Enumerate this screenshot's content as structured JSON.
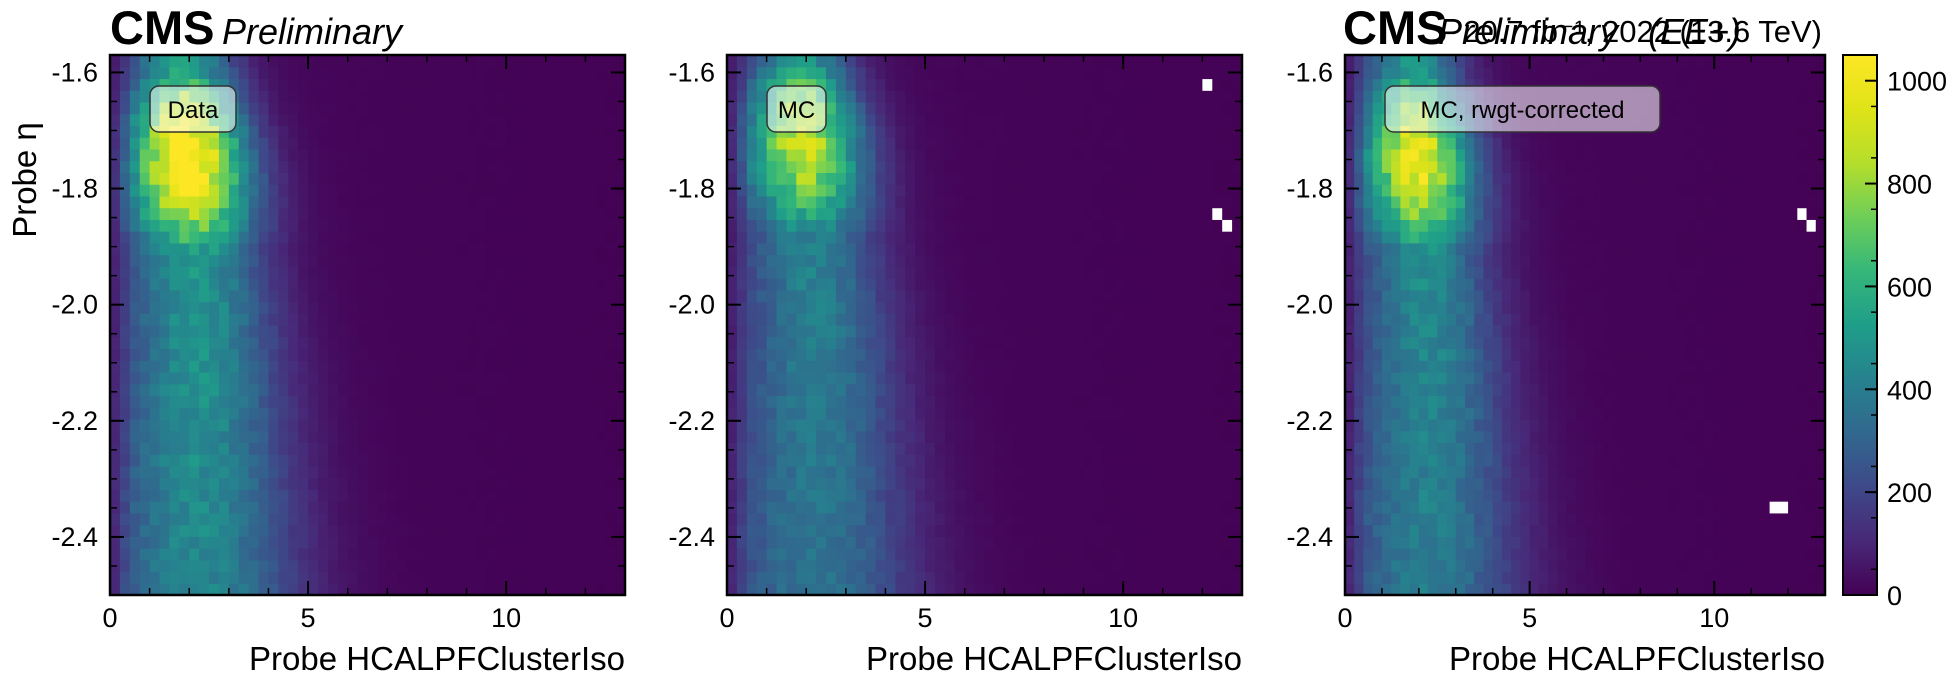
{
  "experiment": {
    "cms_label": "CMS",
    "preliminary_label": "Preliminary",
    "lumi_label": "20.7 fb⁻¹, 2022 (13.6 TeV)",
    "overlap_preliminary": "Preliminary",
    "overlap_era": "(EE+)"
  },
  "colors": {
    "viridis_low": "#440154",
    "viridis_high": "#fde725",
    "missing_bin": "#ffffff"
  },
  "chart_data": [
    {
      "type": "heatmap",
      "label": "Data",
      "xlabel": "Probe HCALPFClusterIso",
      "ylabel": "Probe η",
      "xlim": [
        0,
        13
      ],
      "ylim": [
        -2.5,
        -1.57
      ],
      "xticks": [
        "0",
        "5",
        "10"
      ],
      "yticks": [
        "-1.6",
        "-1.8",
        "-2.0",
        "-2.2",
        "-2.4"
      ],
      "peak_x": 1.8,
      "peak_y": -1.75,
      "max_value": 1000,
      "empty_bins": []
    },
    {
      "type": "heatmap",
      "label": "MC",
      "xlabel": "Probe HCALPFClusterIso",
      "ylabel": "",
      "xlim": [
        0,
        13
      ],
      "ylim": [
        -2.5,
        -1.57
      ],
      "xticks": [
        "0",
        "5",
        "10"
      ],
      "yticks": [
        "-1.6",
        "-1.8",
        "-2.0",
        "-2.2",
        "-2.4"
      ],
      "peak_x": 1.8,
      "peak_y": -1.72,
      "max_value": 820,
      "empty_bins": [
        [
          12.1,
          -1.63
        ],
        [
          12.4,
          -1.84
        ],
        [
          12.7,
          -1.86
        ]
      ]
    },
    {
      "type": "heatmap",
      "label": "MC, rwgt-corrected",
      "xlabel": "Probe HCALPFClusterIso",
      "ylabel": "",
      "xlim": [
        0,
        13
      ],
      "ylim": [
        -2.5,
        -1.57
      ],
      "xticks": [
        "0",
        "5",
        "10"
      ],
      "yticks": [
        "-1.6",
        "-1.8",
        "-2.0",
        "-2.2",
        "-2.4"
      ],
      "peak_x": 1.8,
      "peak_y": -1.75,
      "max_value": 900,
      "empty_bins": [
        [
          12.3,
          -1.84
        ],
        [
          12.6,
          -1.86
        ],
        [
          11.6,
          -2.35
        ],
        [
          11.9,
          -2.35
        ]
      ]
    }
  ],
  "colorbar": {
    "min": 0,
    "max": 1050,
    "ticks": [
      "0",
      "200",
      "400",
      "600",
      "800",
      "1000"
    ],
    "tick_values": [
      0,
      200,
      400,
      600,
      800,
      1000
    ]
  }
}
